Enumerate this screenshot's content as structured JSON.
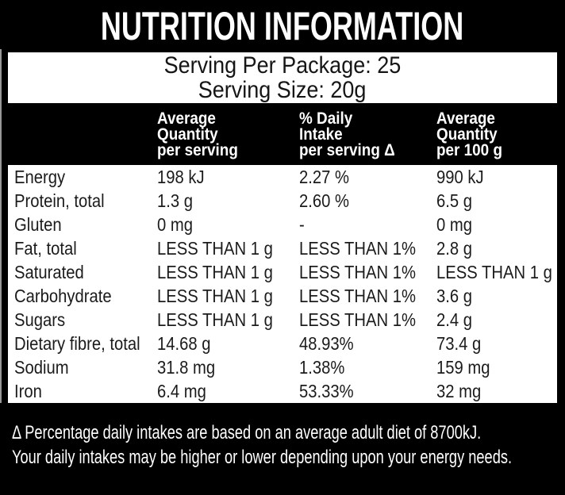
{
  "label": {
    "title": "NUTRITION INFORMATION",
    "serving": {
      "per_package": "Serving Per Package: 25",
      "size": "Serving Size: 20g"
    },
    "table": {
      "columns": [
        {
          "lines": [
            "Average",
            "Quantity",
            "per serving"
          ]
        },
        {
          "lines": [
            "% Daily",
            "Intake",
            "per serving Δ"
          ]
        },
        {
          "lines": [
            "Average",
            "Quantity",
            "per 100 g"
          ]
        }
      ],
      "rows": [
        {
          "nutrient": "Energy",
          "per_serving": "198 kJ",
          "daily_intake": "2.27 %",
          "per_100g": "990 kJ"
        },
        {
          "nutrient": "Protein, total",
          "per_serving": "1.3 g",
          "daily_intake": "2.60 %",
          "per_100g": "6.5 g"
        },
        {
          "nutrient": "Gluten",
          "per_serving": "0 mg",
          "daily_intake": "-",
          "per_100g": "0 mg"
        },
        {
          "nutrient": "Fat, total",
          "per_serving": "LESS THAN 1 g",
          "daily_intake": "LESS THAN 1%",
          "per_100g": "2.8 g"
        },
        {
          "nutrient": "Saturated",
          "per_serving": "LESS THAN 1 g",
          "daily_intake": "LESS THAN 1%",
          "per_100g": "LESS THAN 1 g"
        },
        {
          "nutrient": "Carbohydrate",
          "per_serving": "LESS THAN 1 g",
          "daily_intake": "LESS THAN 1%",
          "per_100g": "3.6 g"
        },
        {
          "nutrient": "Sugars",
          "per_serving": "LESS THAN 1 g",
          "daily_intake": "LESS THAN 1%",
          "per_100g": "2.4 g"
        },
        {
          "nutrient": "Dietary fibre, total",
          "per_serving": "14.68 g",
          "daily_intake": "48.93%",
          "per_100g": "73.4 g"
        },
        {
          "nutrient": "Sodium",
          "per_serving": "31.8 mg",
          "daily_intake": "1.38%",
          "per_100g": "159 mg"
        },
        {
          "nutrient": "Iron",
          "per_serving": "6.4 mg",
          "daily_intake": "53.33%",
          "per_100g": "32 mg"
        }
      ]
    },
    "footnote": {
      "line1": "Δ Percentage daily intakes are based on an average adult diet of 8700kJ.",
      "line2": "Your daily intakes may be higher or lower depending upon your energy needs."
    },
    "colors": {
      "background": "#000000",
      "panel": "#ffffff",
      "text_dark": "#1b1b1b",
      "text_light": "#ffffff"
    }
  }
}
